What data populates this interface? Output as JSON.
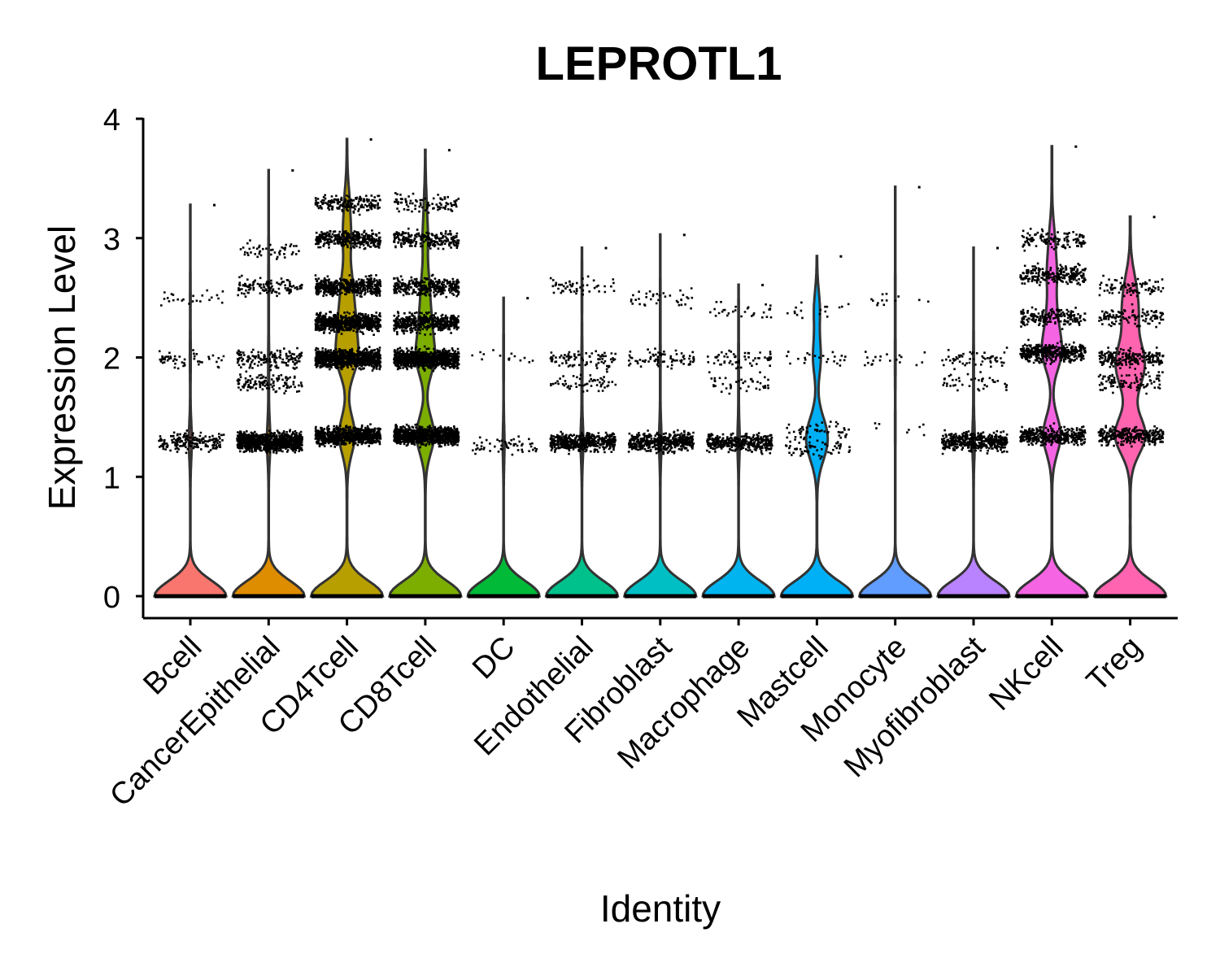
{
  "chart_data": {
    "type": "violin",
    "title": "LEPROTL1",
    "xlabel": "Identity",
    "ylabel": "Expression Level",
    "ylim": [
      0,
      4
    ],
    "yticks": [
      0,
      1,
      2,
      3,
      4
    ],
    "point_color": "#000000",
    "legend": "none",
    "grid": false,
    "series": [
      {
        "category": "Bcell",
        "color": "#F8766D",
        "max": 3.28,
        "zero_fraction": 0.96,
        "levels": [
          1.3,
          2.0,
          2.5
        ],
        "level_weights": [
          0.75,
          0.17,
          0.08
        ],
        "n_points": 260
      },
      {
        "category": "CancerEpithelial",
        "color": "#DE8C00",
        "max": 3.57,
        "zero_fraction": 0.95,
        "levels": [
          1.3,
          2.0,
          1.8,
          2.6,
          2.9
        ],
        "level_weights": [
          0.7,
          0.12,
          0.08,
          0.07,
          0.03
        ],
        "n_points": 1400
      },
      {
        "category": "CD4Tcell",
        "color": "#B79F00",
        "max": 3.83,
        "zero_fraction": 0.55,
        "levels": [
          1.35,
          2.0,
          2.3,
          2.6,
          3.0,
          3.3
        ],
        "level_weights": [
          0.22,
          0.28,
          0.2,
          0.14,
          0.1,
          0.06
        ],
        "n_points": 3400
      },
      {
        "category": "CD8Tcell",
        "color": "#7CAE00",
        "max": 3.74,
        "zero_fraction": 0.6,
        "levels": [
          1.35,
          2.0,
          2.3,
          2.6,
          3.0,
          3.3
        ],
        "level_weights": [
          0.3,
          0.3,
          0.17,
          0.12,
          0.08,
          0.03
        ],
        "n_points": 2800
      },
      {
        "category": "DC",
        "color": "#00BA38",
        "max": 2.5,
        "zero_fraction": 0.98,
        "levels": [
          1.27,
          2.0
        ],
        "level_weights": [
          0.85,
          0.15
        ],
        "n_points": 70
      },
      {
        "category": "Endothelial",
        "color": "#00C08B",
        "max": 2.92,
        "zero_fraction": 0.96,
        "levels": [
          1.3,
          2.0,
          1.8,
          2.6
        ],
        "level_weights": [
          0.7,
          0.13,
          0.1,
          0.07
        ],
        "n_points": 650
      },
      {
        "category": "Fibroblast",
        "color": "#00BFC4",
        "max": 3.03,
        "zero_fraction": 0.97,
        "levels": [
          1.3,
          2.0,
          2.5
        ],
        "level_weights": [
          0.8,
          0.13,
          0.07
        ],
        "n_points": 550
      },
      {
        "category": "Macrophage",
        "color": "#00B4F0",
        "max": 2.61,
        "zero_fraction": 0.97,
        "levels": [
          1.3,
          2.0,
          1.8,
          2.4
        ],
        "level_weights": [
          0.75,
          0.12,
          0.08,
          0.05
        ],
        "n_points": 500
      },
      {
        "category": "Mastcell",
        "color": "#00B0F6",
        "max": 2.85,
        "zero_fraction": 0.7,
        "levels": [
          1.25,
          1.4,
          2.0,
          2.4
        ],
        "level_weights": [
          0.35,
          0.3,
          0.2,
          0.15
        ],
        "n_points": 150
      },
      {
        "category": "Monocyte",
        "color": "#619CFF",
        "max": 3.43,
        "zero_fraction": 0.99,
        "levels": [
          2.0,
          2.5,
          1.4
        ],
        "level_weights": [
          0.5,
          0.3,
          0.2
        ],
        "n_points": 40
      },
      {
        "category": "Myofibroblast",
        "color": "#B983FF",
        "max": 2.92,
        "zero_fraction": 0.97,
        "levels": [
          1.3,
          2.0,
          1.8
        ],
        "level_weights": [
          0.8,
          0.12,
          0.08
        ],
        "n_points": 520
      },
      {
        "category": "NKcell",
        "color": "#F564E3",
        "max": 3.77,
        "zero_fraction": 0.6,
        "levels": [
          1.35,
          2.05,
          2.35,
          2.7,
          3.0
        ],
        "level_weights": [
          0.3,
          0.32,
          0.15,
          0.15,
          0.08
        ],
        "n_points": 1300
      },
      {
        "category": "Treg",
        "color": "#FF64B0",
        "max": 3.18,
        "zero_fraction": 0.5,
        "levels": [
          1.35,
          2.0,
          1.8,
          2.35,
          2.6
        ],
        "level_weights": [
          0.35,
          0.25,
          0.15,
          0.15,
          0.1
        ],
        "n_points": 800
      }
    ]
  }
}
